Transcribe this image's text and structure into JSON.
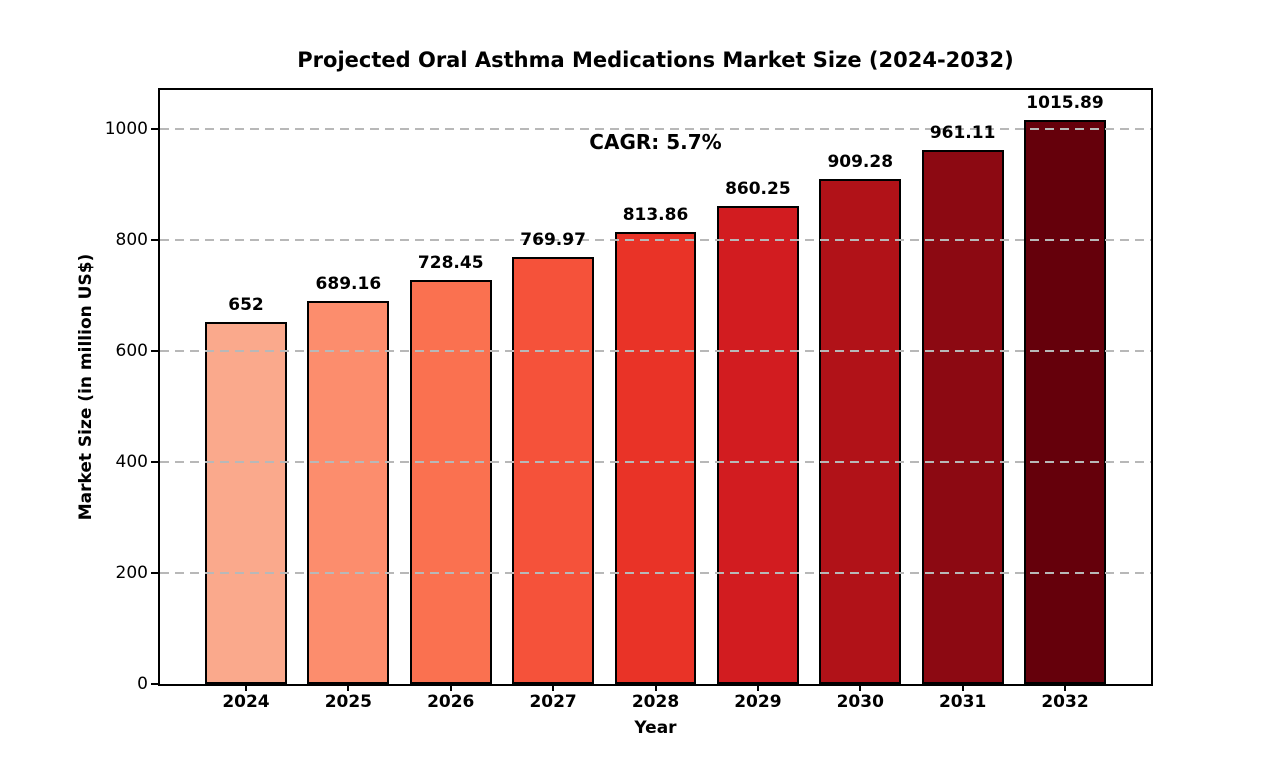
{
  "chart_data": {
    "type": "bar",
    "title": "Projected Oral Asthma Medications Market Size (2024-2032)",
    "annotation": "CAGR: 5.7%",
    "xlabel": "Year",
    "ylabel": "Market Size (in million US$)",
    "categories": [
      "2024",
      "2025",
      "2026",
      "2027",
      "2028",
      "2029",
      "2030",
      "2031",
      "2032"
    ],
    "values": [
      652,
      689.16,
      728.45,
      769.97,
      813.86,
      860.25,
      909.28,
      961.11,
      1015.89
    ],
    "value_labels": [
      "652",
      "689.16",
      "728.45",
      "769.97",
      "813.86",
      "860.25",
      "909.28",
      "961.11",
      "1015.89"
    ],
    "yticks": [
      0,
      200,
      400,
      600,
      800,
      1000
    ],
    "ylim": [
      0,
      1070
    ],
    "xlim": [
      -0.84,
      8.84
    ],
    "bar_width": 0.8,
    "bar_colors": [
      "#faa98c",
      "#fc8d6d",
      "#fa7150",
      "#f5523a",
      "#e93327",
      "#d21c20",
      "#b11218",
      "#8c0912",
      "#65000b"
    ],
    "bar_edge_color": "#000000",
    "grid": "horizontal-dashed",
    "gridline_color": "#b8b8b8",
    "legend": "none",
    "background": "#ffffff"
  }
}
